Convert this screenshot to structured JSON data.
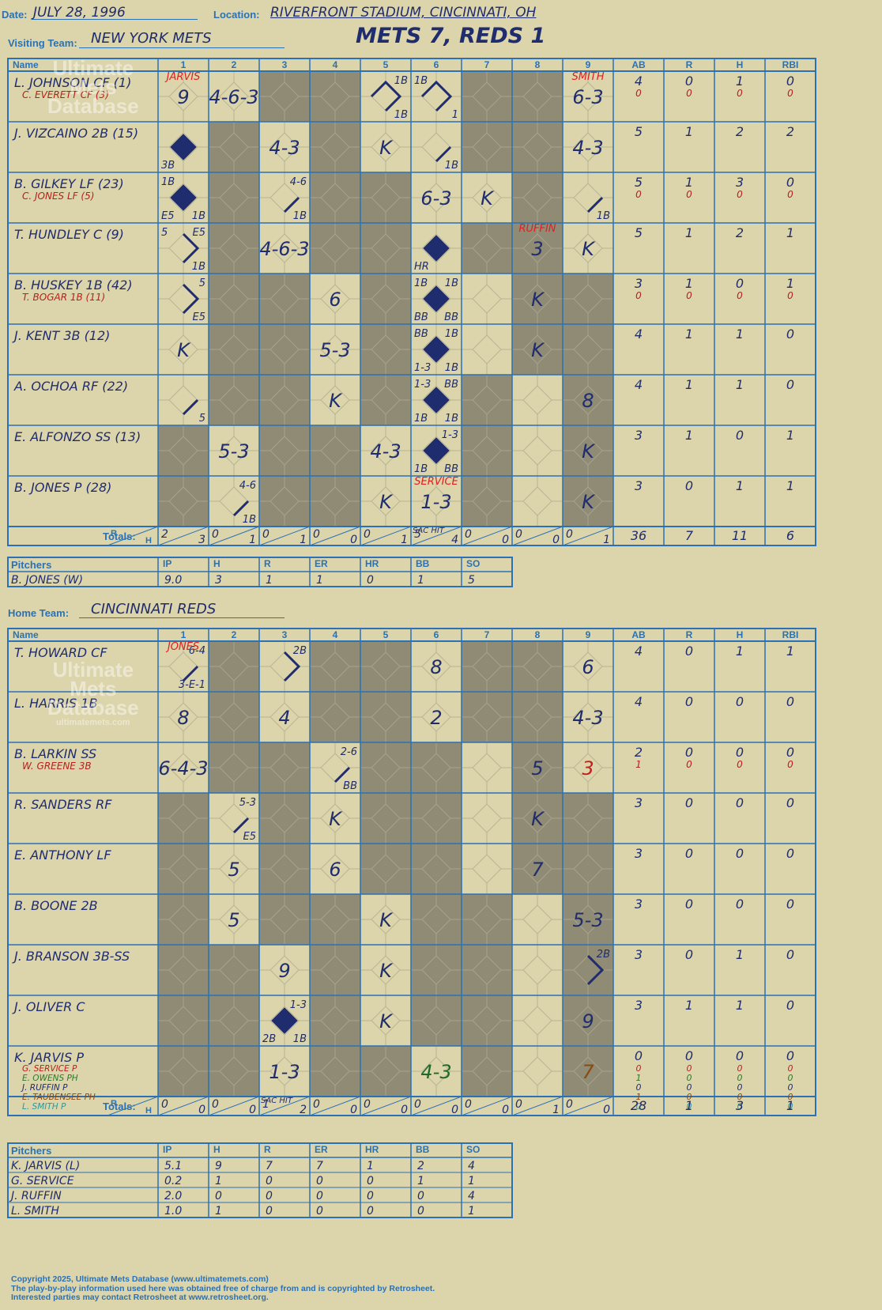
{
  "header": {
    "date_label": "Date:",
    "date": "JULY 28, 1996",
    "location_label": "Location:",
    "location": "RIVERFRONT STADIUM, CINCINNATI, OH",
    "visiting_label": "Visiting Team:",
    "visiting_team": "NEW YORK METS",
    "home_label": "Home Team:",
    "home_team": "CINCINNATI REDS",
    "result": "METS 7, REDS 1"
  },
  "watermark": {
    "l1": "Ultimate",
    "l2": "Mets",
    "l3": "Database",
    "url": "ultimatemets.com"
  },
  "columns": {
    "name": "Name",
    "innings": [
      "1",
      "2",
      "3",
      "4",
      "5",
      "6",
      "7",
      "8",
      "9"
    ],
    "stats": [
      "AB",
      "R",
      "H",
      "RBI"
    ],
    "totals": "Totals:",
    "r": "R",
    "h": "H"
  },
  "pitch_headers": {
    "title": "Pitchers",
    "cols": [
      "IP",
      "H",
      "R",
      "ER",
      "HR",
      "BB",
      "SO"
    ]
  },
  "visitors": {
    "players": [
      {
        "name": "L. JOHNSON CF (1)",
        "sub": "C. EVERETT CF (3)",
        "ab": "4",
        "r": "0",
        "h": "1",
        "rbi": "0",
        "ab2": "0",
        "r2": "0",
        "h2": "0",
        "rbi2": "0"
      },
      {
        "name": "J. VIZCAINO 2B (15)",
        "ab": "5",
        "r": "1",
        "h": "2",
        "rbi": "2"
      },
      {
        "name": "B. GILKEY LF (23)",
        "sub": "C. JONES LF (5)",
        "ab": "5",
        "r": "1",
        "h": "3",
        "rbi": "0",
        "ab2": "0",
        "r2": "0",
        "h2": "0",
        "rbi2": "0"
      },
      {
        "name": "T. HUNDLEY C (9)",
        "ab": "5",
        "r": "1",
        "h": "2",
        "rbi": "1"
      },
      {
        "name": "B. HUSKEY 1B (42)",
        "sub": "T. BOGAR 1B (11)",
        "ab": "3",
        "r": "1",
        "h": "0",
        "rbi": "1",
        "ab2": "0",
        "r2": "0",
        "h2": "0",
        "rbi2": "0"
      },
      {
        "name": "J. KENT 3B (12)",
        "ab": "4",
        "r": "1",
        "h": "1",
        "rbi": "0"
      },
      {
        "name": "A. OCHOA RF (22)",
        "ab": "4",
        "r": "1",
        "h": "1",
        "rbi": "0"
      },
      {
        "name": "E. ALFONZO SS (13)",
        "ab": "3",
        "r": "1",
        "h": "0",
        "rbi": "1"
      },
      {
        "name": "B. JONES P (28)",
        "ab": "3",
        "r": "0",
        "h": "1",
        "rbi": "1"
      }
    ],
    "totals_inn": [
      [
        "2",
        "3"
      ],
      [
        "0",
        "1"
      ],
      [
        "0",
        "1"
      ],
      [
        "0",
        "0"
      ],
      [
        "0",
        "1"
      ],
      [
        "5",
        "4"
      ],
      [
        "0",
        "0"
      ],
      [
        "0",
        "0"
      ],
      [
        "0",
        "1"
      ]
    ],
    "totals": {
      "ab": "36",
      "r": "7",
      "h": "11",
      "rbi": "6"
    },
    "pitchers": [
      {
        "name": "B. JONES (W)",
        "ip": "9.0",
        "h": "3",
        "r": "1",
        "er": "1",
        "hr": "0",
        "bb": "1",
        "so": "5"
      }
    ]
  },
  "home": {
    "players": [
      {
        "name": "T. HOWARD CF",
        "ab": "4",
        "r": "0",
        "h": "1",
        "rbi": "1"
      },
      {
        "name": "L. HARRIS 1B",
        "ab": "4",
        "r": "0",
        "h": "0",
        "rbi": "0"
      },
      {
        "name": "B. LARKIN SS",
        "sub": "W. GREENE 3B",
        "ab": "2",
        "r": "0",
        "h": "0",
        "rbi": "0",
        "ab2": "1",
        "r2": "0",
        "h2": "0",
        "rbi2": "0"
      },
      {
        "name": "R. SANDERS RF",
        "ab": "3",
        "r": "0",
        "h": "0",
        "rbi": "0"
      },
      {
        "name": "E. ANTHONY LF",
        "ab": "3",
        "r": "0",
        "h": "0",
        "rbi": "0"
      },
      {
        "name": "B. BOONE 2B",
        "ab": "3",
        "r": "0",
        "h": "0",
        "rbi": "0"
      },
      {
        "name": "J. BRANSON 3B-SS",
        "ab": "3",
        "r": "0",
        "h": "1",
        "rbi": "0"
      },
      {
        "name": "J. OLIVER C",
        "ab": "3",
        "r": "1",
        "h": "1",
        "rbi": "0"
      },
      {
        "name": "K. JARVIS P",
        "ab": "0",
        "r": "0",
        "h": "0",
        "rbi": "0",
        "subs": [
          {
            "name": "G. SERVICE P",
            "color": "#b82020",
            "v": [
              "0",
              "0",
              "0",
              "0"
            ]
          },
          {
            "name": "E. OWENS PH",
            "color": "#2a7a2a",
            "v": [
              "1",
              "0",
              "0",
              "0"
            ]
          },
          {
            "name": "J. RUFFIN P",
            "color": "#1f2d6e",
            "v": [
              "0",
              "0",
              "0",
              "0"
            ]
          },
          {
            "name": "E. TAUBENSEE PH",
            "color": "#8a4a10",
            "v": [
              "1",
              "0",
              "0",
              "0"
            ]
          },
          {
            "name": "L. SMITH P",
            "color": "#2a9a9a",
            "v": [
              "0",
              "0",
              "0",
              "0"
            ]
          }
        ]
      }
    ],
    "totals_inn": [
      [
        "0",
        "0"
      ],
      [
        "0",
        "0"
      ],
      [
        "1",
        "2"
      ],
      [
        "0",
        "0"
      ],
      [
        "0",
        "0"
      ],
      [
        "0",
        "0"
      ],
      [
        "0",
        "0"
      ],
      [
        "0",
        "1"
      ],
      [
        "0",
        "0"
      ]
    ],
    "totals": {
      "ab": "28",
      "r": "1",
      "h": "3",
      "rbi": "1"
    },
    "pitchers": [
      {
        "name": "K. JARVIS (L)",
        "ip": "5.1",
        "h": "9",
        "r": "7",
        "er": "7",
        "hr": "1",
        "bb": "2",
        "so": "4"
      },
      {
        "name": "G. SERVICE",
        "ip": "0.2",
        "h": "1",
        "r": "0",
        "er": "0",
        "hr": "0",
        "bb": "1",
        "so": "1"
      },
      {
        "name": "J. RUFFIN",
        "ip": "2.0",
        "h": "0",
        "r": "0",
        "er": "0",
        "hr": "0",
        "bb": "0",
        "so": "4"
      },
      {
        "name": "L. SMITH",
        "ip": "1.0",
        "h": "1",
        "r": "0",
        "er": "0",
        "hr": "0",
        "bb": "0",
        "so": "1"
      }
    ]
  },
  "plays_v": [
    {
      "r": 0,
      "c": 0,
      "t": "9",
      "note": "JARVIS",
      "nc": "#e02020"
    },
    {
      "r": 0,
      "c": 1,
      "t": "4-6-3"
    },
    {
      "r": 0,
      "c": 4,
      "tr": "1B",
      "br": "1B",
      "path": 3
    },
    {
      "r": 0,
      "c": 5,
      "tl": "1B",
      "br": "1",
      "path": 3
    },
    {
      "r": 0,
      "c": 8,
      "t": "6-3",
      "note": "SMITH",
      "nc": "#e02020"
    },
    {
      "r": 1,
      "c": 0,
      "bl": "3B",
      "scored": true
    },
    {
      "r": 1,
      "c": 2,
      "t": "4-3"
    },
    {
      "r": 1,
      "c": 4,
      "t": "K"
    },
    {
      "r": 1,
      "c": 5,
      "br": "1B",
      "path": 1
    },
    {
      "r": 1,
      "c": 8,
      "t": "4-3"
    },
    {
      "r": 2,
      "c": 0,
      "tl": "1B",
      "bl": "E5",
      "br": "1B",
      "scored": true
    },
    {
      "r": 2,
      "c": 2,
      "tr": "4-6",
      "br": "1B",
      "path": 1
    },
    {
      "r": 2,
      "c": 5,
      "t": "6-3"
    },
    {
      "r": 2,
      "c": 6,
      "t": "K"
    },
    {
      "r": 2,
      "c": 8,
      "br": "1B",
      "path": 1
    },
    {
      "r": 3,
      "c": 0,
      "tl": "5",
      "tr": "E5",
      "br": "1B",
      "path": 2
    },
    {
      "r": 3,
      "c": 2,
      "t": "4-6-3"
    },
    {
      "r": 3,
      "c": 5,
      "bl": "HR",
      "scored": true
    },
    {
      "r": 3,
      "c": 7,
      "t": "3",
      "note": "RUFFIN",
      "nc": "#e02020"
    },
    {
      "r": 3,
      "c": 8,
      "t": "K"
    },
    {
      "r": 4,
      "c": 0,
      "tr": "5",
      "br": "E5",
      "path": 2
    },
    {
      "r": 4,
      "c": 3,
      "t": "6"
    },
    {
      "r": 4,
      "c": 5,
      "tl": "1B",
      "tr": "1B",
      "bl": "BB",
      "br": "BB",
      "scored": true
    },
    {
      "r": 4,
      "c": 7,
      "t": "K"
    },
    {
      "r": 5,
      "c": 0,
      "t": "K"
    },
    {
      "r": 5,
      "c": 3,
      "t": "5-3"
    },
    {
      "r": 5,
      "c": 5,
      "tl": "BB",
      "tr": "1B",
      "bl": "1-3",
      "br": "1B",
      "scored": true
    },
    {
      "r": 5,
      "c": 7,
      "t": "K"
    },
    {
      "r": 6,
      "c": 0,
      "br": "5",
      "path": 1
    },
    {
      "r": 6,
      "c": 3,
      "t": "K"
    },
    {
      "r": 6,
      "c": 5,
      "tl": "1-3",
      "tr": "BB",
      "bl": "1B",
      "br": "1B",
      "scored": true
    },
    {
      "r": 6,
      "c": 8,
      "t": "8"
    },
    {
      "r": 7,
      "c": 1,
      "t": "5-3"
    },
    {
      "r": 7,
      "c": 4,
      "t": "4-3"
    },
    {
      "r": 7,
      "c": 5,
      "tr": "1-3",
      "bl": "1B",
      "br": "BB",
      "scored": true
    },
    {
      "r": 7,
      "c": 8,
      "t": "K"
    },
    {
      "r": 8,
      "c": 1,
      "tr": "4-6",
      "br": "1B",
      "path": 1
    },
    {
      "r": 8,
      "c": 4,
      "t": "K"
    },
    {
      "r": 8,
      "c": 5,
      "t": "1-3",
      "note": "SERVICE",
      "nc": "#e02020",
      "foot": "SAC HIT"
    },
    {
      "r": 8,
      "c": 8,
      "t": "K"
    }
  ],
  "plays_h": [
    {
      "r": 0,
      "c": 0,
      "tr": "6-4",
      "br": "3-E-1",
      "path": 1,
      "note": "JONES",
      "nc": "#e02020"
    },
    {
      "r": 0,
      "c": 2,
      "tr": "2B",
      "path": 2
    },
    {
      "r": 0,
      "c": 5,
      "t": "8"
    },
    {
      "r": 0,
      "c": 8,
      "t": "6"
    },
    {
      "r": 1,
      "c": 0,
      "t": "8"
    },
    {
      "r": 1,
      "c": 2,
      "t": "4"
    },
    {
      "r": 1,
      "c": 5,
      "t": "2"
    },
    {
      "r": 1,
      "c": 8,
      "t": "4-3"
    },
    {
      "r": 2,
      "c": 0,
      "t": "6-4-3"
    },
    {
      "r": 2,
      "c": 3,
      "tr": "2-6",
      "br": "BB",
      "path": 1
    },
    {
      "r": 2,
      "c": 7,
      "t": "5"
    },
    {
      "r": 2,
      "c": 8,
      "t": "3",
      "tc": "#c02020"
    },
    {
      "r": 3,
      "c": 1,
      "tr": "5-3",
      "br": "E5",
      "path": 1
    },
    {
      "r": 3,
      "c": 3,
      "t": "K"
    },
    {
      "r": 3,
      "c": 7,
      "t": "K"
    },
    {
      "r": 4,
      "c": 1,
      "t": "5"
    },
    {
      "r": 4,
      "c": 3,
      "t": "6"
    },
    {
      "r": 4,
      "c": 7,
      "t": "7"
    },
    {
      "r": 5,
      "c": 1,
      "t": "5"
    },
    {
      "r": 5,
      "c": 4,
      "t": "K"
    },
    {
      "r": 5,
      "c": 8,
      "t": "5-3"
    },
    {
      "r": 6,
      "c": 2,
      "t": "9"
    },
    {
      "r": 6,
      "c": 4,
      "t": "K"
    },
    {
      "r": 6,
      "c": 8,
      "tr": "2B",
      "path": 2
    },
    {
      "r": 7,
      "c": 2,
      "tr": "1-3",
      "bl": "2B",
      "br": "1B",
      "scored": true
    },
    {
      "r": 7,
      "c": 4,
      "t": "K"
    },
    {
      "r": 7,
      "c": 8,
      "t": "9"
    },
    {
      "r": 8,
      "c": 2,
      "t": "1-3",
      "foot": "SAC HIT"
    },
    {
      "r": 8,
      "c": 5,
      "t": "4-3",
      "tc": "#1f6a2a"
    },
    {
      "r": 8,
      "c": 8,
      "t": "7",
      "tc": "#8a4a10"
    }
  ],
  "footer": {
    "l1": "Copyright 2025, Ultimate Mets Database (www.ultimatemets.com)",
    "l2": "The play-by-play information used here was obtained free of charge from and is copyrighted by Retrosheet.",
    "l3": "Interested parties may contact Retrosheet at www.retrosheet.org."
  }
}
